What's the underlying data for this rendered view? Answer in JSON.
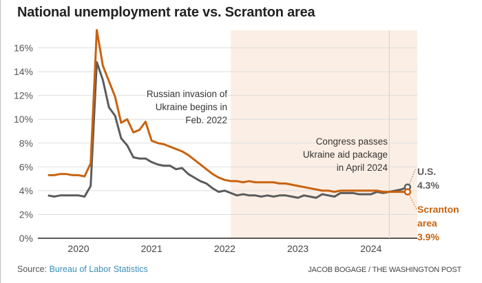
{
  "title": "National unemployment rate vs. Scranton area",
  "source_label": "Source:",
  "source_link": "Bureau of Labor Statistics",
  "credit": "JACOB BOGAGE / THE WASHINGTON POST",
  "colors": {
    "us": "#5b5b5b",
    "scranton": "#c8620f",
    "shade": "#fbeee4",
    "source_link": "#3a8fb7"
  },
  "chart_data": {
    "type": "line",
    "title": "National unemployment rate vs. Scranton area",
    "xlabel": "",
    "ylabel": "",
    "ylim": [
      0,
      17
    ],
    "yticks": [
      0,
      2,
      4,
      6,
      8,
      10,
      12,
      14,
      16
    ],
    "ytick_labels": [
      "0%",
      "2%",
      "4%",
      "6%",
      "8%",
      "10%",
      "12%",
      "14%",
      "16%"
    ],
    "xtick_labels": [
      "2020",
      "2021",
      "2022",
      "2023",
      "2024"
    ],
    "x_start": "2019-08",
    "x_end": "2024-07",
    "grid": true,
    "series": [
      {
        "name": "U.S.",
        "end_label": "U.S.",
        "end_value_label": "4.3%",
        "values": [
          3.6,
          3.5,
          3.6,
          3.6,
          3.6,
          3.6,
          3.5,
          4.4,
          14.8,
          13.3,
          11.0,
          10.3,
          8.4,
          7.8,
          6.8,
          6.7,
          6.7,
          6.4,
          6.2,
          6.1,
          6.1,
          5.8,
          5.9,
          5.4,
          5.1,
          4.8,
          4.6,
          4.2,
          3.9,
          4.0,
          3.8,
          3.6,
          3.7,
          3.6,
          3.6,
          3.5,
          3.6,
          3.5,
          3.6,
          3.6,
          3.5,
          3.4,
          3.6,
          3.5,
          3.4,
          3.7,
          3.6,
          3.5,
          3.8,
          3.8,
          3.8,
          3.7,
          3.7,
          3.7,
          3.9,
          3.8,
          3.9,
          4.0,
          4.1,
          4.3
        ]
      },
      {
        "name": "Scranton area",
        "end_label": [
          "Scranton",
          "area"
        ],
        "end_value_label": "3.9%",
        "values": [
          5.3,
          5.3,
          5.4,
          5.4,
          5.3,
          5.3,
          5.2,
          6.3,
          17.5,
          14.5,
          13.2,
          11.9,
          9.7,
          10.0,
          8.9,
          9.1,
          9.8,
          8.2,
          8.0,
          7.9,
          7.7,
          7.5,
          7.3,
          7.0,
          6.6,
          6.2,
          5.8,
          5.4,
          5.1,
          4.9,
          4.8,
          4.8,
          4.7,
          4.8,
          4.7,
          4.7,
          4.7,
          4.7,
          4.6,
          4.6,
          4.5,
          4.4,
          4.3,
          4.2,
          4.1,
          4.0,
          4.0,
          3.9,
          4.0,
          4.0,
          4.0,
          4.0,
          4.0,
          4.0,
          4.0,
          3.9,
          3.9,
          3.9,
          3.9,
          3.9
        ]
      }
    ],
    "shaded_period": {
      "start": "2022-02",
      "end": "2024-07"
    },
    "annotations": [
      {
        "at": "2022-02",
        "lines": [
          "Russian invasion of",
          "Ukraine begins in",
          "Feb. 2022"
        ]
      },
      {
        "at": "2024-04",
        "lines": [
          "Congress passes",
          "Ukraine aid package",
          "in April 2024"
        ]
      }
    ]
  }
}
